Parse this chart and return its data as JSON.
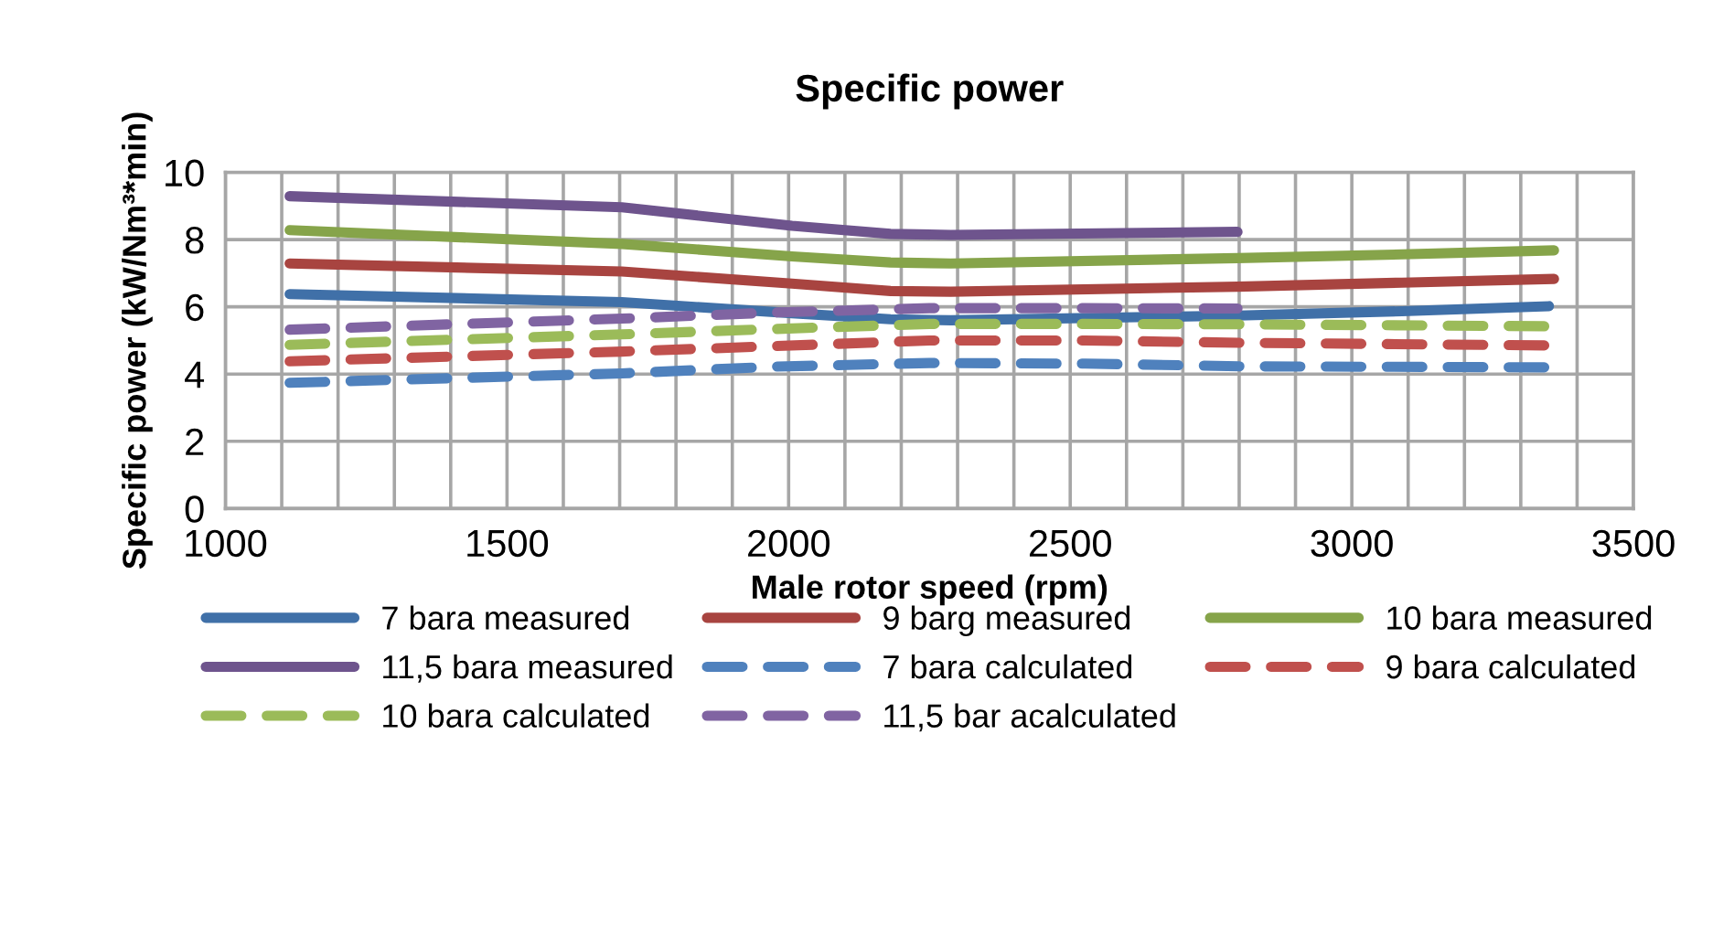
{
  "chart_data": {
    "type": "line",
    "title": "Specific power",
    "xlabel": "Male rotor speed (rpm)",
    "ylabel": "Specific power (kW/Nm³*min)",
    "xlim": [
      1000,
      3500
    ],
    "ylim": [
      0,
      10
    ],
    "xticks": [
      1000,
      {
        "value": 1100,
        "label": null
      },
      {
        "value": 1200,
        "label": null
      },
      {
        "value": 1300,
        "label": null
      },
      {
        "value": 1400,
        "label": null
      },
      1500,
      {
        "value": 1600,
        "label": null
      },
      {
        "value": 1700,
        "label": null
      },
      {
        "value": 1800,
        "label": null
      },
      {
        "value": 1900,
        "label": null
      },
      2000,
      {
        "value": 2100,
        "label": null
      },
      {
        "value": 2200,
        "label": null
      },
      {
        "value": 2300,
        "label": null
      },
      {
        "value": 2400,
        "label": null
      },
      2500,
      {
        "value": 2600,
        "label": null
      },
      {
        "value": 2700,
        "label": null
      },
      {
        "value": 2800,
        "label": null
      },
      {
        "value": 2900,
        "label": null
      },
      3000,
      {
        "value": 3100,
        "label": null
      },
      {
        "value": 3200,
        "label": null
      },
      {
        "value": 3300,
        "label": null
      },
      {
        "value": 3400,
        "label": null
      },
      3500
    ],
    "yticks": [
      0,
      2,
      4,
      6,
      8,
      10
    ],
    "grid": true,
    "legend": "bottom",
    "marker": "none",
    "series": [
      {
        "name": "7 bara measured",
        "color": "#4070a8",
        "line_style": "solid",
        "x": [
          1114,
          1704,
          2006,
          2181,
          2288,
          2797,
          3089,
          3350
        ],
        "values": [
          6.38,
          6.14,
          5.81,
          5.63,
          5.6,
          5.74,
          5.87,
          6.02
        ]
      },
      {
        "name": "9 barg measured",
        "color": "#a84440",
        "line_style": "solid",
        "x": [
          1114,
          1704,
          2006,
          2181,
          2288,
          2797,
          3089,
          3359
        ],
        "values": [
          7.29,
          7.05,
          6.69,
          6.47,
          6.45,
          6.6,
          6.72,
          6.83
        ]
      },
      {
        "name": "10 bara measured",
        "color": "#86a44a",
        "line_style": "solid",
        "x": [
          1114,
          1704,
          2006,
          2181,
          2288,
          2797,
          3089,
          3359
        ],
        "values": [
          8.28,
          7.87,
          7.5,
          7.32,
          7.29,
          7.45,
          7.56,
          7.68
        ]
      },
      {
        "name": "11,5 bara measured",
        "color": "#6e548d",
        "line_style": "solid",
        "x": [
          1114,
          1704,
          2006,
          2181,
          2288,
          2797
        ],
        "values": [
          9.29,
          8.96,
          8.41,
          8.17,
          8.14,
          8.23
        ]
      },
      {
        "name": "7 bara calculated",
        "color": "#4f81bd",
        "line_style": "dashed",
        "x": [
          1114,
          1704,
          1974,
          2250,
          2526,
          2807,
          3359
        ],
        "values": [
          3.74,
          4.02,
          4.22,
          4.33,
          4.31,
          4.23,
          4.2
        ]
      },
      {
        "name": "9 bara calculated",
        "color": "#c0504d",
        "line_style": "dashed",
        "x": [
          1114,
          1704,
          1974,
          2250,
          2526,
          2807,
          3359
        ],
        "values": [
          4.38,
          4.67,
          4.83,
          5.0,
          5.0,
          4.93,
          4.85
        ]
      },
      {
        "name": "10 bara calculated",
        "color": "#9bbb59",
        "line_style": "dashed",
        "x": [
          1114,
          1704,
          1974,
          2250,
          2526,
          2807,
          3359
        ],
        "values": [
          4.87,
          5.18,
          5.34,
          5.49,
          5.49,
          5.48,
          5.42
        ]
      },
      {
        "name": "11,5 bar acalculated",
        "color": "#8064a2",
        "line_style": "dashed",
        "x": [
          1114,
          1704,
          1974,
          2250,
          2526,
          2797
        ],
        "values": [
          5.32,
          5.65,
          5.83,
          5.96,
          5.96,
          5.95
        ]
      }
    ]
  }
}
